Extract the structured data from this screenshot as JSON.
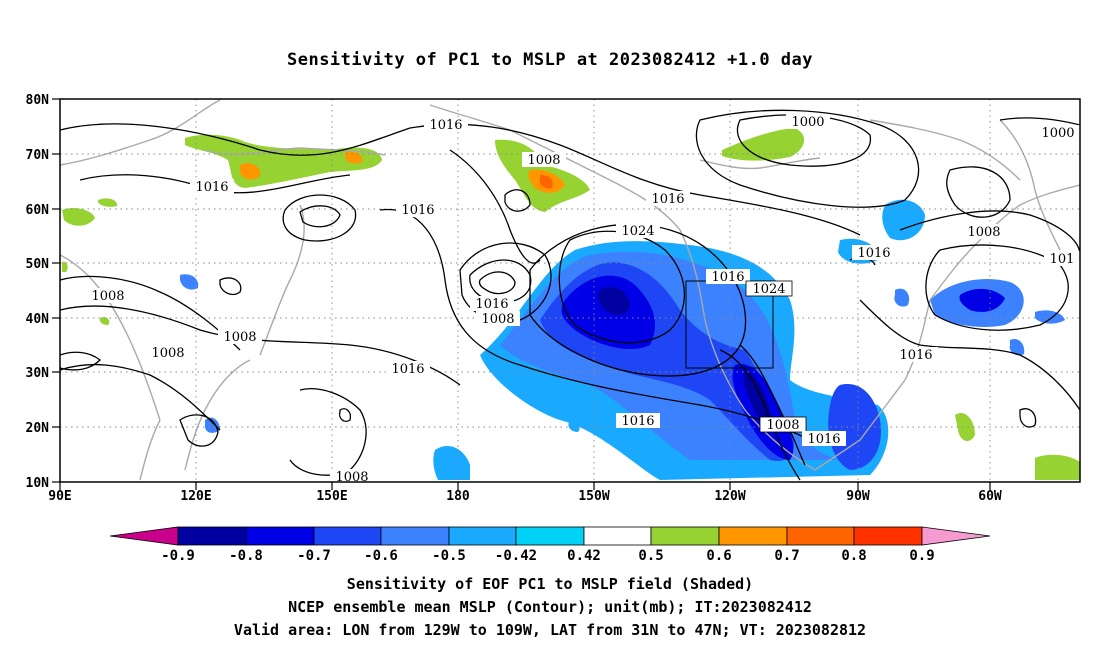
{
  "title": "Sensitivity of PC1 to MSLP at 2023082412 +1.0 day",
  "map": {
    "lat_labels": [
      "80N",
      "70N",
      "60N",
      "50N",
      "40N",
      "30N",
      "20N",
      "10N"
    ],
    "lon_labels": [
      "90E",
      "120E",
      "150E",
      "180",
      "150W",
      "120W",
      "90W",
      "60W"
    ],
    "contour_labels": [
      "1016",
      "1008",
      "1000",
      "1016",
      "1016",
      "1008",
      "1016",
      "1016",
      "1024",
      "1016",
      "1024",
      "1016",
      "1008",
      "1000",
      "1008",
      "1008",
      "1016",
      "1008",
      "1016",
      "1016",
      "1016",
      "1008",
      "1016",
      "1008",
      "101",
      "1016"
    ],
    "valid_area": {
      "lon": [
        -129,
        -109
      ],
      "lat": [
        31,
        47
      ]
    }
  },
  "colorbar": {
    "ticks": [
      "-0.9",
      "-0.8",
      "-0.7",
      "-0.6",
      "-0.5",
      "-0.42",
      "0.42",
      "0.5",
      "0.6",
      "0.7",
      "0.8",
      "0.9"
    ],
    "colors": [
      "#c8008c",
      "#0000a0",
      "#0000e6",
      "#1e46f5",
      "#3c82ff",
      "#19aaff",
      "#00d2f5",
      "#ffffff",
      "#96d232",
      "#ff9600",
      "#ff6400",
      "#ff3200",
      "#ff0000",
      "#f59bd2"
    ]
  },
  "captions": [
    "Sensitivity of EOF PC1 to MSLP field (Shaded)",
    "NCEP ensemble mean MSLP (Contour); unit(mb); IT:2023082412",
    "Valid area: LON from 129W to 109W, LAT from 31N to 47N; VT: 2023082812"
  ]
}
